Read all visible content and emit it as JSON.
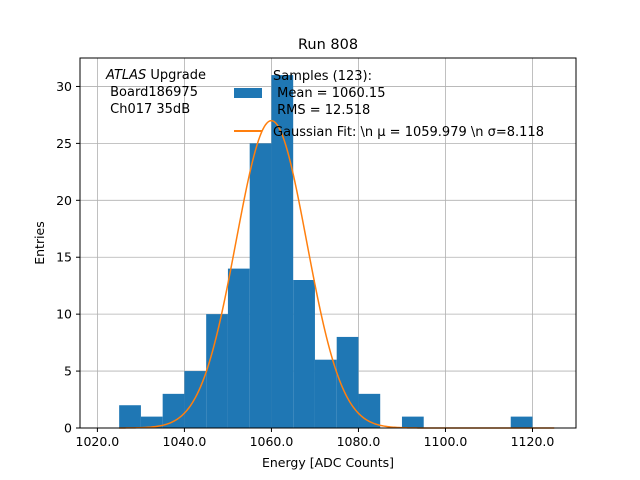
{
  "chart_data": {
    "type": "bar",
    "title": "Run 808",
    "xlabel": "Energy [ADC Counts]",
    "ylabel": "Entries",
    "xlim": [
      1016,
      1130
    ],
    "ylim": [
      0,
      32.5
    ],
    "grid": true,
    "x_ticks": [
      1020,
      1040,
      1060,
      1080,
      1100,
      1120
    ],
    "x_tick_labels": [
      "1020.0",
      "1040.0",
      "1060.0",
      "1080.0",
      "1100.0",
      "1120.0"
    ],
    "y_ticks": [
      0,
      5,
      10,
      15,
      20,
      25,
      30
    ],
    "y_tick_labels": [
      "0",
      "5",
      "10",
      "15",
      "20",
      "25",
      "30"
    ],
    "bins": [
      {
        "x0": 1025,
        "x1": 1030,
        "count": 2
      },
      {
        "x0": 1030,
        "x1": 1035,
        "count": 1
      },
      {
        "x0": 1035,
        "x1": 1040,
        "count": 3
      },
      {
        "x0": 1040,
        "x1": 1045,
        "count": 5
      },
      {
        "x0": 1045,
        "x1": 1050,
        "count": 10
      },
      {
        "x0": 1050,
        "x1": 1055,
        "count": 14
      },
      {
        "x0": 1055,
        "x1": 1060,
        "count": 25
      },
      {
        "x0": 1060,
        "x1": 1065,
        "count": 31
      },
      {
        "x0": 1065,
        "x1": 1070,
        "count": 13
      },
      {
        "x0": 1070,
        "x1": 1075,
        "count": 6
      },
      {
        "x0": 1075,
        "x1": 1080,
        "count": 8
      },
      {
        "x0": 1080,
        "x1": 1085,
        "count": 3
      },
      {
        "x0": 1085,
        "x1": 1090,
        "count": 0
      },
      {
        "x0": 1090,
        "x1": 1095,
        "count": 1
      },
      {
        "x0": 1095,
        "x1": 1100,
        "count": 0
      },
      {
        "x0": 1100,
        "x1": 1105,
        "count": 0
      },
      {
        "x0": 1105,
        "x1": 1110,
        "count": 0
      },
      {
        "x0": 1110,
        "x1": 1115,
        "count": 0
      },
      {
        "x0": 1115,
        "x1": 1120,
        "count": 1
      }
    ],
    "fit": {
      "mu": 1059.979,
      "sigma": 8.118,
      "amplitude": 27,
      "x_range": [
        1025,
        1125
      ]
    },
    "colors": {
      "histogram": "#1f77b4",
      "fit": "#ff7f0e",
      "grid": "#b0b0b0"
    },
    "annotation": {
      "atlas": "ATLAS",
      "upgrade": " Upgrade",
      "line2": " Board186975",
      "line3": " Ch017 35dB"
    },
    "legend": {
      "placement": "top-center",
      "hist_lines": [
        "Samples (123):",
        " Mean = 1060.15",
        " RMS = 12.518"
      ],
      "fit_label": "Gaussian Fit: \\n μ = 1059.979 \\n σ=8.118"
    }
  }
}
